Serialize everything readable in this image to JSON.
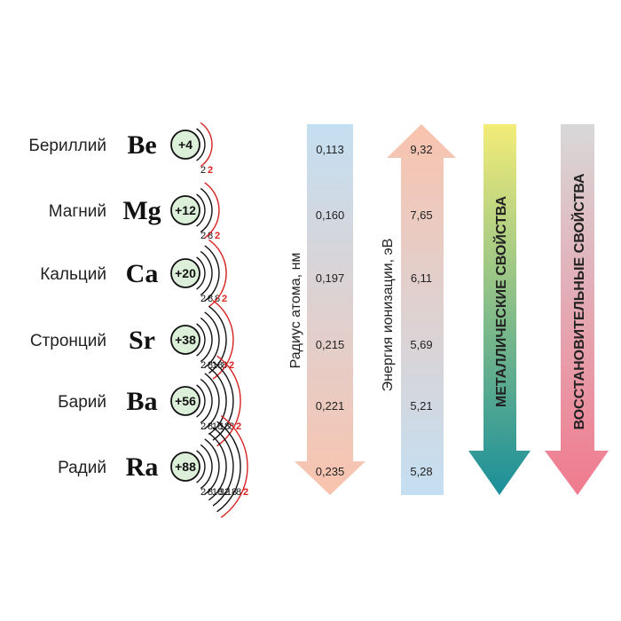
{
  "elements": [
    {
      "name": "Бериллий",
      "symbol": "Be",
      "charge": "+4",
      "shells": [
        "2",
        "2"
      ]
    },
    {
      "name": "Магний",
      "symbol": "Mg",
      "charge": "+12",
      "shells": [
        "2",
        "8",
        "2"
      ]
    },
    {
      "name": "Кальций",
      "symbol": "Ca",
      "charge": "+20",
      "shells": [
        "2",
        "8",
        "8",
        "2"
      ]
    },
    {
      "name": "Стронций",
      "symbol": "Sr",
      "charge": "+38",
      "shells": [
        "2",
        "8",
        "18",
        "8",
        "2"
      ]
    },
    {
      "name": "Барий",
      "symbol": "Ba",
      "charge": "+56",
      "shells": [
        "2",
        "8",
        "18",
        "18",
        "8",
        "2"
      ]
    },
    {
      "name": "Радий",
      "symbol": "Ra",
      "charge": "+88",
      "shells": [
        "2",
        "8",
        "18",
        "32",
        "18",
        "8",
        "2"
      ]
    }
  ],
  "radius": {
    "label": "Радиус атома, нм",
    "values": [
      "0,113",
      "0,160",
      "0,197",
      "0,215",
      "0,221",
      "0,235"
    ],
    "direction": "down"
  },
  "ionization": {
    "label": "Энергия ионизации, эВ",
    "values": [
      "9,32",
      "7,65",
      "6,11",
      "5,69",
      "5,21",
      "5,28"
    ],
    "direction": "up"
  },
  "metallic": {
    "label": "МЕТАЛЛИЧЕСКИЕ СВОЙСТВА",
    "direction": "down",
    "colors": [
      "#f3ec78",
      "#1a8f9a"
    ]
  },
  "reducing": {
    "label": "ВОССТАНОВИТЕЛЬНЫЕ СВОЙСТВА",
    "direction": "down",
    "colors": [
      "#d8d8d8",
      "#f07a8e"
    ]
  },
  "colors": {
    "nucleus_fill": "#dcefd8",
    "outer_shell": "#d62222",
    "radius_arrow_top": "#c4dff2",
    "radius_arrow_bottom": "#f9c3ae",
    "ionization_arrow_top": "#f9c3ae",
    "ionization_arrow_bottom": "#c4dff2"
  }
}
